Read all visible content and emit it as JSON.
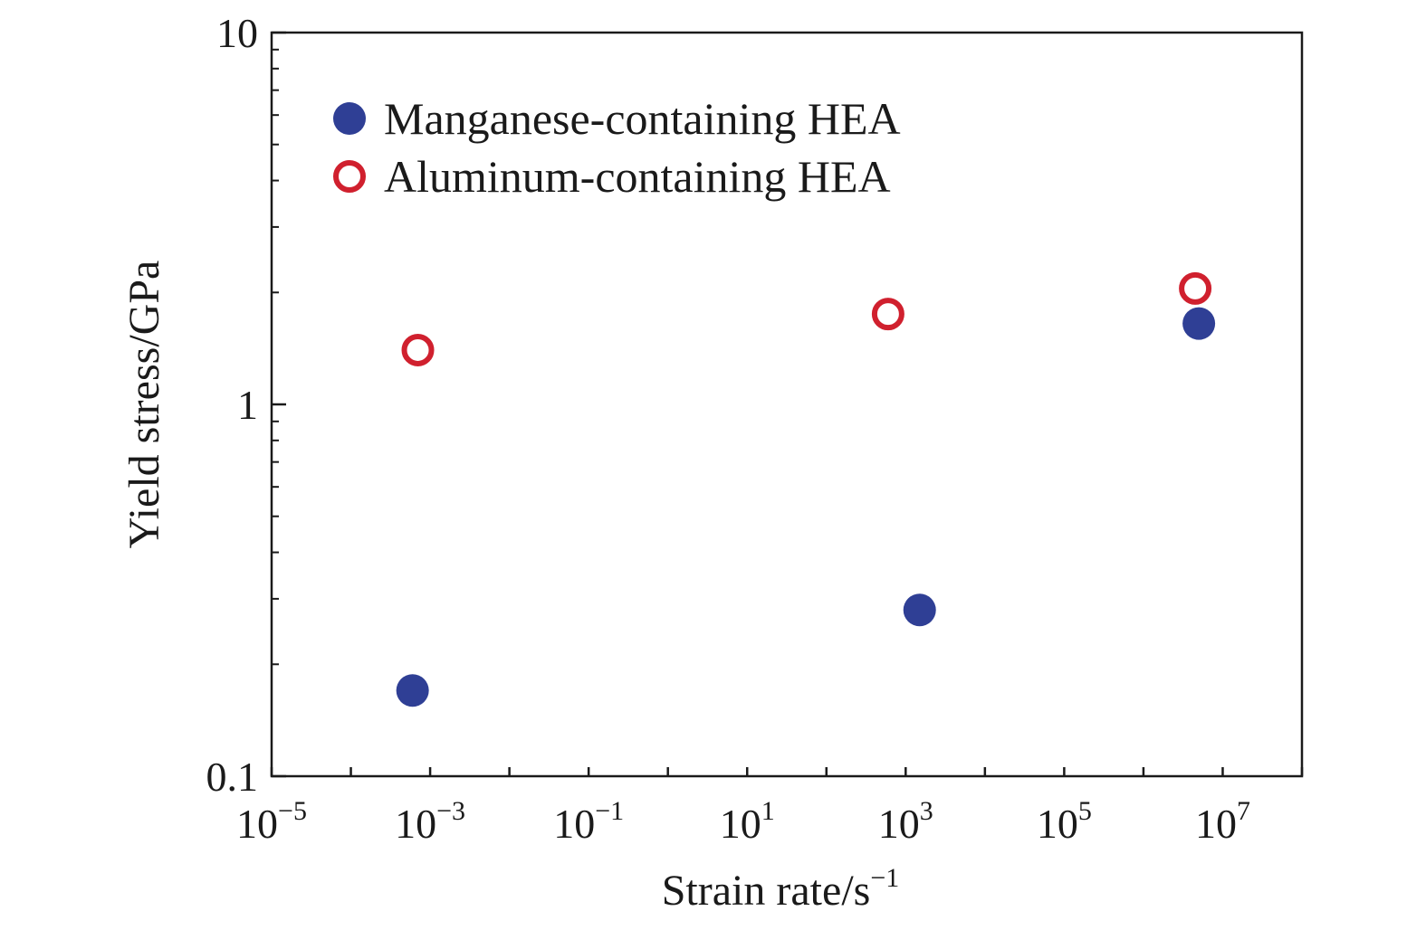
{
  "chart_data": {
    "type": "scatter",
    "xlabel": "Strain rate/s",
    "xlabel_superscript": "−1",
    "ylabel": "Yield stress/GPa",
    "x_scale": "log",
    "y_scale": "log",
    "xlim": [
      1e-05,
      100000000
    ],
    "ylim": [
      0.1,
      10
    ],
    "x_ticks": [
      {
        "value": 1e-05,
        "base": "10",
        "exp": "−5"
      },
      {
        "value": 0.001,
        "base": "10",
        "exp": "−3"
      },
      {
        "value": 0.1,
        "base": "10",
        "exp": "−1"
      },
      {
        "value": 10,
        "base": "10",
        "exp": "1"
      },
      {
        "value": 1000,
        "base": "10",
        "exp": "3"
      },
      {
        "value": 100000,
        "base": "10",
        "exp": "5"
      },
      {
        "value": 10000000,
        "base": "10",
        "exp": "7"
      }
    ],
    "y_ticks": [
      {
        "value": 0.1,
        "label": "0.1"
      },
      {
        "value": 1,
        "label": "1"
      },
      {
        "value": 10,
        "label": "10"
      }
    ],
    "grid": false,
    "legend_position": "top-left",
    "series": [
      {
        "name": "Manganese-containing HEA",
        "marker": "filled-circle",
        "color": "#2f3f95",
        "points": [
          {
            "x": 0.0006,
            "y": 0.17
          },
          {
            "x": 1500,
            "y": 0.28
          },
          {
            "x": 5000000,
            "y": 1.65
          }
        ]
      },
      {
        "name": "Aluminum-containing HEA",
        "marker": "hollow-circle",
        "color": "#d0202e",
        "points": [
          {
            "x": 0.0007,
            "y": 1.4
          },
          {
            "x": 600,
            "y": 1.75
          },
          {
            "x": 4500000,
            "y": 2.05
          }
        ]
      }
    ]
  }
}
